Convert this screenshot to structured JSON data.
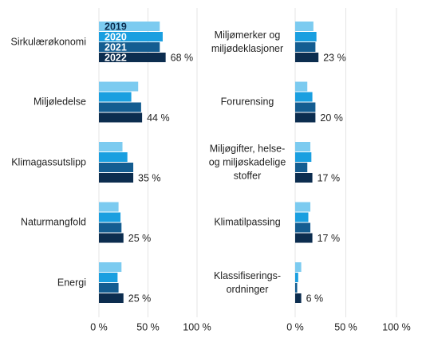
{
  "chart_data": [
    {
      "type": "bar",
      "horizontal": true,
      "categories": [
        "Sirkulærøkonomi",
        "Miljøledelse",
        "Klimagassutslipp",
        "Naturmangfold",
        "Energi"
      ],
      "series": [
        {
          "name": "2019",
          "color": "#7ccbf0",
          "values": [
            62,
            40,
            24,
            20,
            23
          ]
        },
        {
          "name": "2020",
          "color": "#1a9fe0",
          "values": [
            65,
            33,
            29,
            22,
            19
          ]
        },
        {
          "name": "2021",
          "color": "#145d91",
          "values": [
            62,
            43,
            35,
            23,
            20
          ]
        },
        {
          "name": "2022",
          "color": "#0c2d4f",
          "values": [
            68,
            44,
            35,
            25,
            25
          ],
          "value_labels": [
            "68 %",
            "44 %",
            "35 %",
            "25 %",
            "25 %"
          ]
        }
      ],
      "xlim": [
        0,
        100
      ],
      "xticks": [
        {
          "value": 0,
          "label": "0 %"
        },
        {
          "value": 50,
          "label": "50 %"
        },
        {
          "value": 100,
          "label": "100 %"
        }
      ],
      "grid": true,
      "legend": "inside"
    },
    {
      "type": "bar",
      "horizontal": true,
      "categories": [
        "Miljømerker og\nmiljødeklasjoner",
        "Forurensing",
        "Miljøgifter, helse-\nog miljøskadelige\nstoffer",
        "Klimatilpassing",
        "Klassifiserings-\nordninger"
      ],
      "series": [
        {
          "color": "#7ccbf0",
          "values": [
            18,
            12,
            15,
            15,
            6
          ]
        },
        {
          "color": "#1a9fe0",
          "values": [
            21,
            17,
            16,
            13,
            3
          ]
        },
        {
          "color": "#145d91",
          "values": [
            20,
            20,
            12,
            15,
            2
          ]
        },
        {
          "color": "#0c2d4f",
          "values": [
            23,
            20,
            17,
            17,
            6
          ],
          "value_labels": [
            "23 %",
            "20 %",
            "17 %",
            "17 %",
            "6 %"
          ]
        }
      ],
      "xlim": [
        0,
        100
      ],
      "xticks": [
        {
          "value": 0,
          "label": "0 %"
        },
        {
          "value": 50,
          "label": "50 %"
        },
        {
          "value": 100,
          "label": "100 %"
        }
      ],
      "grid": true
    }
  ]
}
